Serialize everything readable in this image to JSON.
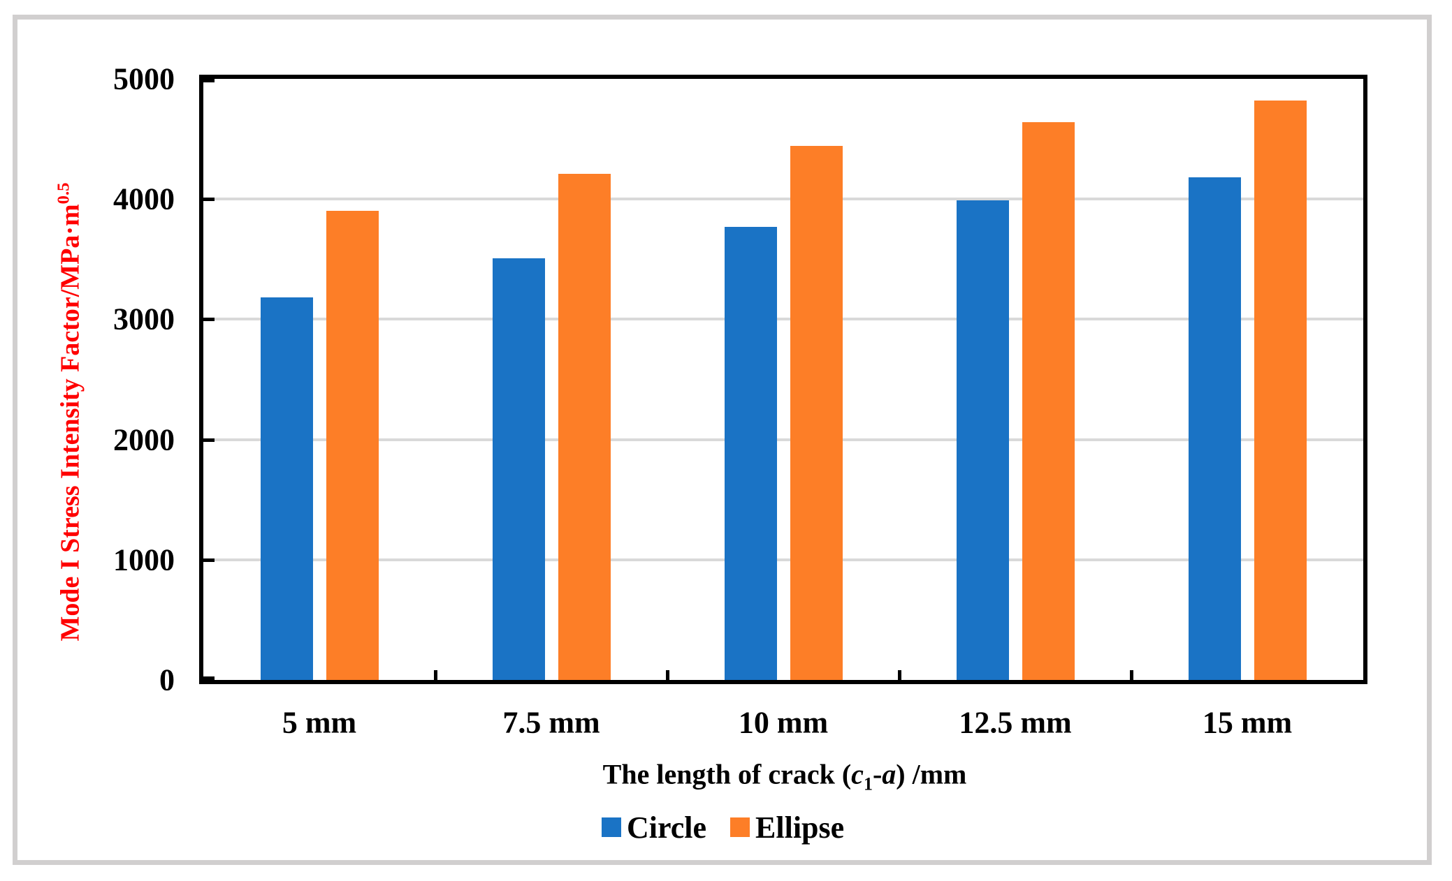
{
  "figure": {
    "background": "#FFFFFF",
    "frame_color": "#D1CFCF",
    "axis_color": "#000000"
  },
  "chart_data": {
    "type": "bar",
    "title": "",
    "categories": [
      "5 mm",
      "7.5 mm",
      "10 mm",
      "12.5 mm",
      "15 mm"
    ],
    "series": [
      {
        "name": "Circle",
        "color": "#1A73C5",
        "values": [
          3180,
          3510,
          3770,
          3990,
          4180
        ]
      },
      {
        "name": "Ellipse",
        "color": "#FD7E27",
        "values": [
          3900,
          4210,
          4440,
          4640,
          4820
        ]
      }
    ],
    "xlabel": "The length of crack (c1-a) /mm",
    "xlabel_parts": {
      "prefix": "The length of crack (",
      "var1": "c",
      "sub1": "1",
      "dash": "-",
      "var2": "a",
      "suffix": ") /mm"
    },
    "ylabel": "Mode I Stress Intensity Factor/MPa·m0.5",
    "ylabel_parts": {
      "main": "Mode I Stress Intensity Factor/MPa·m",
      "sup": "0.5"
    },
    "ylabel_color": "#FF0000",
    "ylim": [
      0,
      5000
    ],
    "ytick_step": 1000,
    "yticks": [
      "0",
      "1000",
      "2000",
      "3000",
      "4000",
      "5000"
    ],
    "grid": true,
    "gridline_color": "#D9D9D9",
    "legend_position": "bottom"
  }
}
